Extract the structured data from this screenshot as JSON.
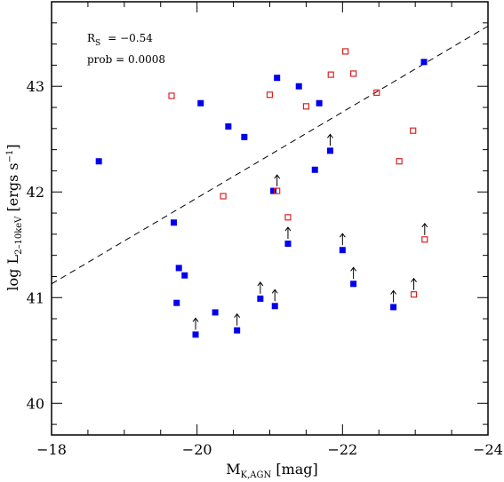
{
  "chart_data": {
    "type": "scatter",
    "xlabel": {
      "main": "M",
      "sub": "K,AGN",
      "unit": "[mag]"
    },
    "ylabel": {
      "main": "log L",
      "sub": "2–10keV",
      "unit": "[ergs s",
      "sup": "−1",
      "close": "]"
    },
    "xlim": [
      -18,
      -24
    ],
    "ylim": [
      39.7,
      43.8
    ],
    "x_ticks": [
      -18,
      -20,
      -22,
      -24
    ],
    "x_tick_labels": [
      "−18",
      "−20",
      "−22",
      "−24"
    ],
    "y_ticks": [
      40,
      41,
      42,
      43
    ],
    "y_tick_labels": [
      "40",
      "41",
      "42",
      "43"
    ],
    "annotations": {
      "rs_label": "R",
      "rs_sub": "S",
      "rs_value": "= −0.54",
      "prob": "prob = 0.0008"
    },
    "fit_line": {
      "style": "dashed",
      "x": [
        -18,
        -24
      ],
      "y": [
        41.13,
        43.57
      ]
    },
    "series": [
      {
        "marker": "filled-square",
        "color": "#0000ee",
        "points": [
          {
            "x": -18.65,
            "y": 42.29,
            "lower_limit": false
          },
          {
            "x": -20.05,
            "y": 42.84,
            "lower_limit": false
          },
          {
            "x": -20.43,
            "y": 42.62,
            "lower_limit": false
          },
          {
            "x": -20.65,
            "y": 42.52,
            "lower_limit": false
          },
          {
            "x": -21.1,
            "y": 43.08,
            "lower_limit": false
          },
          {
            "x": -21.4,
            "y": 43.0,
            "lower_limit": false
          },
          {
            "x": -21.68,
            "y": 42.84,
            "lower_limit": false
          },
          {
            "x": -21.83,
            "y": 42.39,
            "lower_limit": true
          },
          {
            "x": -21.62,
            "y": 42.21,
            "lower_limit": false
          },
          {
            "x": -21.05,
            "y": 42.01,
            "lower_limit": false
          },
          {
            "x": -23.12,
            "y": 43.23,
            "lower_limit": false
          },
          {
            "x": -19.68,
            "y": 41.71,
            "lower_limit": false
          },
          {
            "x": -19.75,
            "y": 41.28,
            "lower_limit": false
          },
          {
            "x": -19.83,
            "y": 41.21,
            "lower_limit": false
          },
          {
            "x": -21.25,
            "y": 41.51,
            "lower_limit": true
          },
          {
            "x": -22.0,
            "y": 41.45,
            "lower_limit": true
          },
          {
            "x": -22.15,
            "y": 41.13,
            "lower_limit": true
          },
          {
            "x": -19.72,
            "y": 40.95,
            "lower_limit": false
          },
          {
            "x": -20.25,
            "y": 40.86,
            "lower_limit": false
          },
          {
            "x": -19.98,
            "y": 40.65,
            "lower_limit": true
          },
          {
            "x": -20.55,
            "y": 40.69,
            "lower_limit": true
          },
          {
            "x": -20.87,
            "y": 40.99,
            "lower_limit": true
          },
          {
            "x": -21.07,
            "y": 40.92,
            "lower_limit": true
          },
          {
            "x": -22.7,
            "y": 40.91,
            "lower_limit": true
          }
        ]
      },
      {
        "marker": "open-square",
        "color": "#dd2222",
        "points": [
          {
            "x": -19.65,
            "y": 42.91,
            "lower_limit": false
          },
          {
            "x": -21.0,
            "y": 42.92,
            "lower_limit": false
          },
          {
            "x": -21.5,
            "y": 42.81,
            "lower_limit": false
          },
          {
            "x": -21.84,
            "y": 43.11,
            "lower_limit": false
          },
          {
            "x": -22.04,
            "y": 43.33,
            "lower_limit": false
          },
          {
            "x": -22.15,
            "y": 43.12,
            "lower_limit": false
          },
          {
            "x": -22.47,
            "y": 42.94,
            "lower_limit": false
          },
          {
            "x": -22.97,
            "y": 42.58,
            "lower_limit": false
          },
          {
            "x": -22.78,
            "y": 42.29,
            "lower_limit": false
          },
          {
            "x": -20.36,
            "y": 41.96,
            "lower_limit": false
          },
          {
            "x": -21.1,
            "y": 42.01,
            "lower_limit": true
          },
          {
            "x": -21.25,
            "y": 41.76,
            "lower_limit": false
          },
          {
            "x": -23.13,
            "y": 41.55,
            "lower_limit": true
          },
          {
            "x": -22.98,
            "y": 41.03,
            "lower_limit": true
          }
        ]
      }
    ]
  }
}
